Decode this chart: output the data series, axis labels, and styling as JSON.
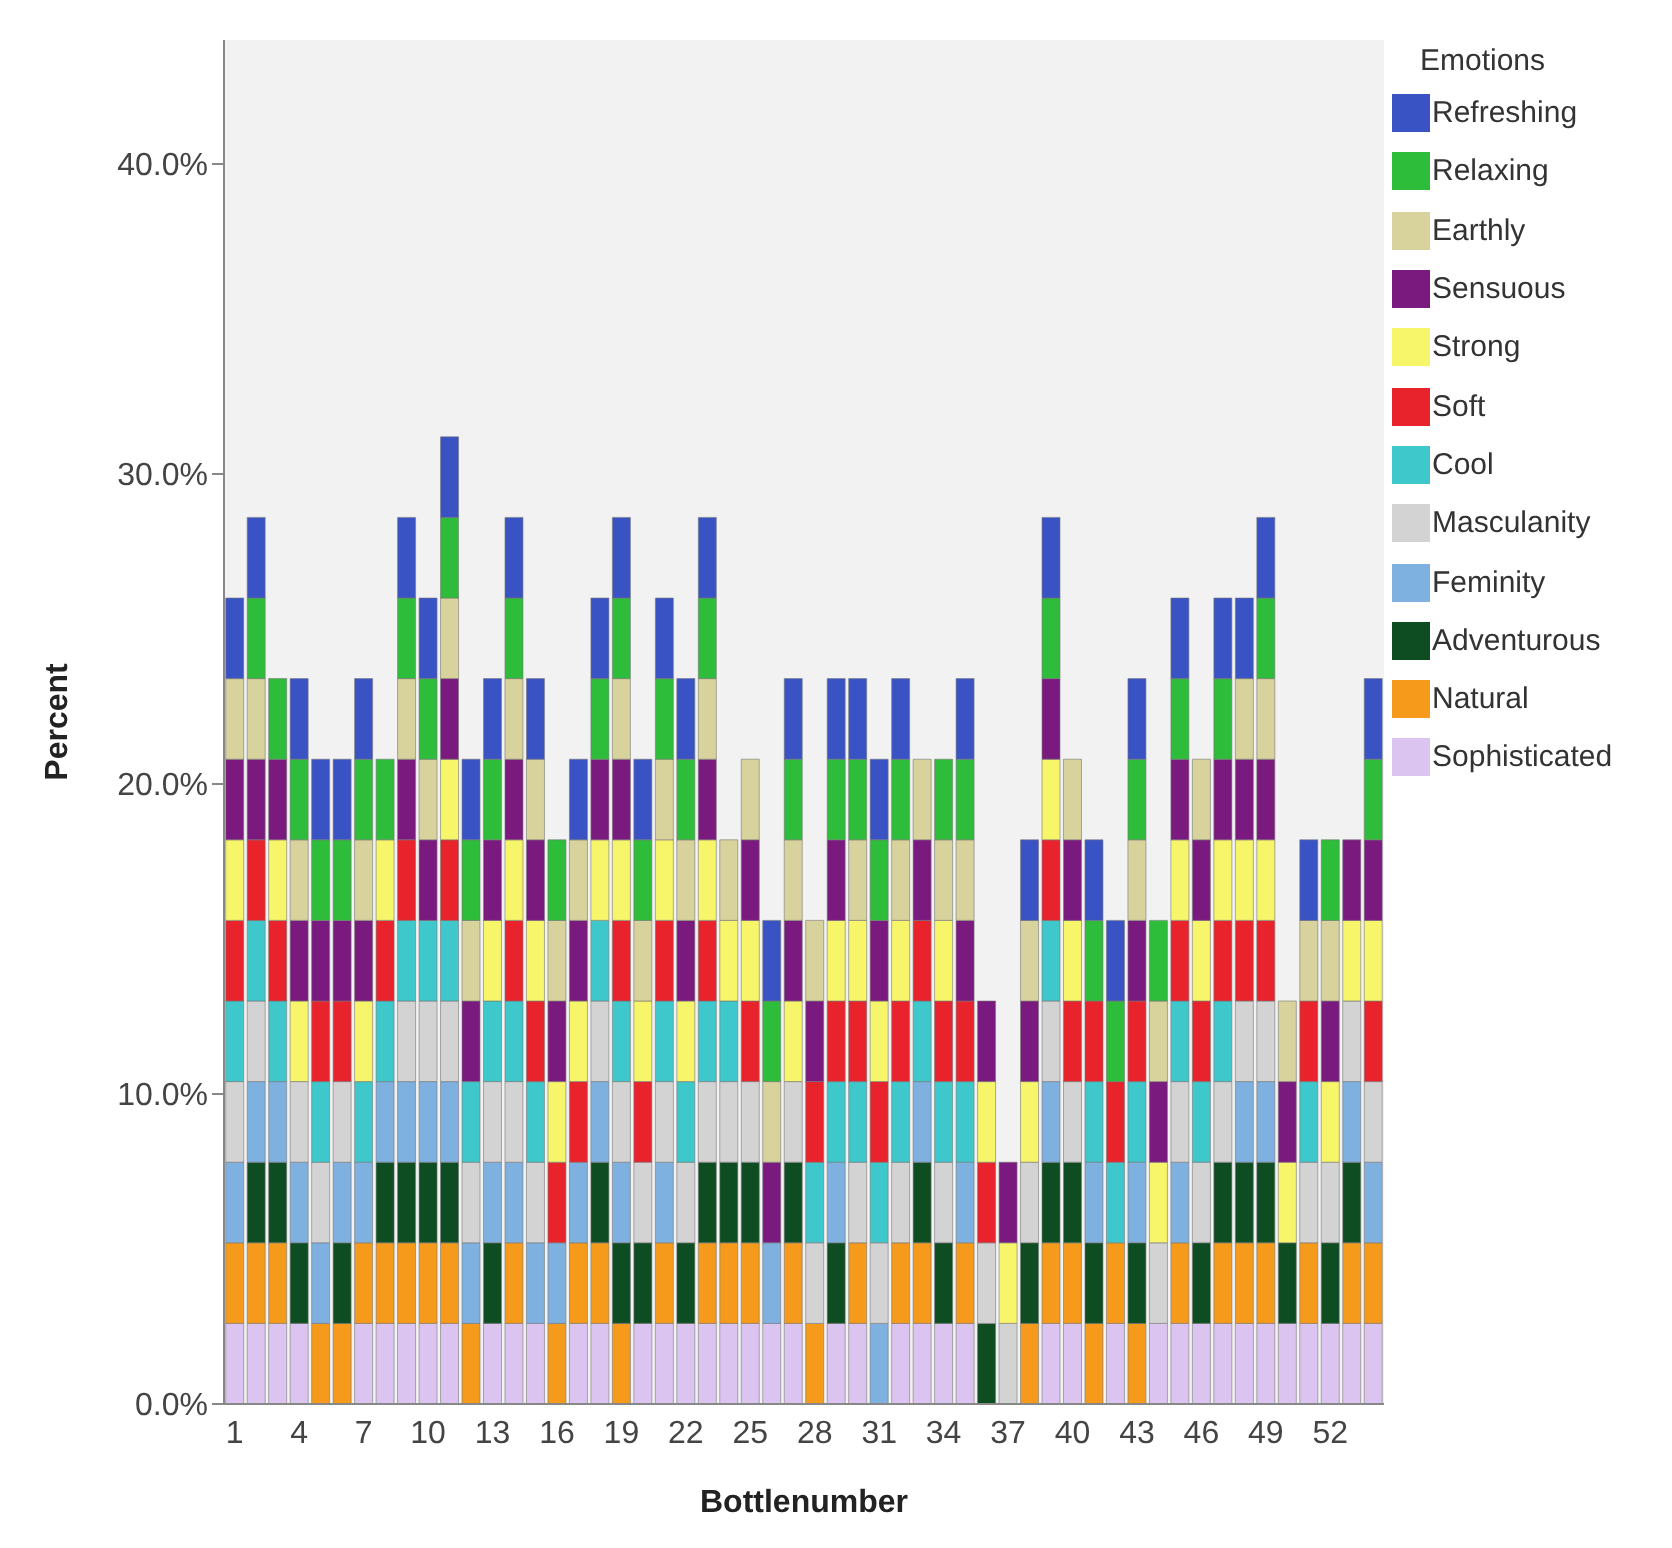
{
  "chart_data": {
    "type": "bar",
    "stacked": true,
    "xlabel": "Bottlenumber",
    "ylabel": "Percent",
    "legend_title": "Emotions",
    "legend": "right",
    "grid": false,
    "categories": [
      "1",
      null,
      null,
      "4",
      null,
      null,
      "7",
      null,
      null,
      "10",
      null,
      null,
      "13",
      null,
      null,
      "16",
      null,
      null,
      "19",
      null,
      null,
      "22",
      null,
      null,
      "25",
      null,
      null,
      "28",
      null,
      null,
      "31",
      null,
      null,
      "34",
      null,
      null,
      "37",
      null,
      null,
      "40",
      null,
      null,
      "43",
      null,
      null,
      "46",
      null,
      null,
      "49",
      null,
      null,
      "52",
      null,
      null
    ],
    "ylim": [
      0,
      44
    ],
    "yticks": [
      {
        "value": 0,
        "label": "0.0%"
      },
      {
        "value": 10,
        "label": "10.0%"
      },
      {
        "value": 20,
        "label": "20.0%"
      },
      {
        "value": 30,
        "label": "30.0%"
      },
      {
        "value": 40,
        "label": "40.0%"
      }
    ],
    "series": [
      {
        "name": "Sophisticated",
        "color": "#dcc4f0",
        "values": [
          2.6,
          2.6,
          2.6,
          2.6,
          0,
          0,
          2.6,
          2.6,
          2.6,
          2.6,
          2.6,
          0,
          2.6,
          2.6,
          2.6,
          0,
          2.6,
          2.6,
          0,
          2.6,
          2.6,
          2.6,
          2.6,
          2.6,
          2.6,
          2.6,
          2.6,
          0,
          2.6,
          2.6,
          0,
          2.6,
          2.6,
          2.6,
          2.6,
          0,
          0,
          0,
          2.6,
          2.6,
          0,
          2.6,
          0,
          2.6,
          2.6,
          2.6,
          2.6,
          2.6,
          2.6,
          2.6,
          2.6,
          2.6,
          2.6,
          2.6
        ]
      },
      {
        "name": "Natural",
        "color": "#f59a1a",
        "values": [
          2.6,
          2.6,
          2.6,
          0,
          2.6,
          2.6,
          2.6,
          2.6,
          2.6,
          2.6,
          2.6,
          2.6,
          0,
          2.6,
          0,
          2.6,
          2.6,
          2.6,
          2.6,
          0,
          2.6,
          0,
          2.6,
          2.6,
          2.6,
          0,
          2.6,
          2.6,
          0,
          2.6,
          0,
          2.6,
          2.6,
          0,
          2.6,
          0,
          0,
          2.6,
          2.6,
          2.6,
          2.6,
          2.6,
          2.6,
          0,
          2.6,
          0,
          2.6,
          2.6,
          2.6,
          0,
          2.6,
          0,
          2.6,
          2.6
        ]
      },
      {
        "name": "Adventurous",
        "color": "#0e4d22",
        "values": [
          0,
          2.6,
          2.6,
          2.6,
          0,
          2.6,
          0,
          2.6,
          2.6,
          2.6,
          2.6,
          0,
          2.6,
          0,
          0,
          0,
          0,
          2.6,
          2.6,
          2.6,
          0,
          2.6,
          2.6,
          2.6,
          2.6,
          0,
          2.6,
          0,
          2.6,
          0,
          0,
          0,
          2.6,
          2.6,
          0,
          2.6,
          0,
          2.6,
          2.6,
          2.6,
          2.6,
          0,
          2.6,
          0,
          0,
          2.6,
          2.6,
          2.6,
          2.6,
          2.6,
          0,
          2.6,
          2.6,
          0
        ]
      },
      {
        "name": "Feminity",
        "color": "#7eb0e0",
        "values": [
          2.6,
          2.6,
          2.6,
          2.6,
          2.6,
          2.6,
          2.6,
          2.6,
          2.6,
          2.6,
          2.6,
          2.6,
          2.6,
          2.6,
          2.6,
          2.6,
          2.6,
          2.6,
          2.6,
          0,
          2.6,
          0,
          0,
          0,
          0,
          2.6,
          0,
          0,
          2.6,
          0,
          2.6,
          0,
          2.6,
          0,
          2.6,
          0,
          0,
          0,
          2.6,
          0,
          2.6,
          0,
          2.6,
          0,
          2.6,
          0,
          0,
          2.6,
          2.6,
          0,
          0,
          0,
          2.6,
          2.6
        ]
      },
      {
        "name": "Masculanity",
        "color": "#d3d3d3",
        "values": [
          2.6,
          2.6,
          0,
          2.6,
          2.6,
          2.6,
          0,
          0,
          2.6,
          2.6,
          2.6,
          2.6,
          2.6,
          2.6,
          2.6,
          0,
          0,
          2.6,
          2.6,
          2.6,
          2.6,
          2.6,
          2.6,
          2.6,
          2.6,
          0,
          2.6,
          2.6,
          0,
          2.6,
          2.6,
          2.6,
          0,
          2.6,
          0,
          2.6,
          2.6,
          2.6,
          2.6,
          2.6,
          0,
          0,
          0,
          2.6,
          2.6,
          2.6,
          2.6,
          2.6,
          2.6,
          0,
          2.6,
          2.6,
          2.6,
          2.6
        ]
      },
      {
        "name": "Cool",
        "color": "#3ec8cc",
        "values": [
          2.6,
          2.6,
          2.6,
          0,
          2.6,
          0,
          2.6,
          2.6,
          2.6,
          2.6,
          2.6,
          2.6,
          2.6,
          2.6,
          2.6,
          0,
          0,
          2.6,
          2.6,
          0,
          2.6,
          2.6,
          2.6,
          2.6,
          0,
          0,
          0,
          2.6,
          2.6,
          2.6,
          2.6,
          2.6,
          2.6,
          2.6,
          2.6,
          0,
          0,
          0,
          2.6,
          0,
          2.6,
          2.6,
          2.6,
          0,
          2.6,
          2.6,
          2.6,
          0,
          0,
          0,
          2.6,
          0,
          0,
          0
        ]
      },
      {
        "name": "Soft",
        "color": "#e8232b",
        "values": [
          2.6,
          2.6,
          2.6,
          0,
          2.6,
          2.6,
          0,
          2.6,
          2.6,
          0,
          2.6,
          0,
          0,
          2.6,
          2.6,
          2.6,
          2.6,
          0,
          2.6,
          2.6,
          2.6,
          0,
          2.6,
          0,
          2.6,
          0,
          0,
          2.6,
          2.6,
          2.6,
          2.6,
          2.6,
          2.6,
          2.6,
          2.6,
          2.6,
          0,
          0,
          2.6,
          2.6,
          2.6,
          2.6,
          2.6,
          0,
          2.6,
          2.6,
          2.6,
          2.6,
          2.6,
          0,
          2.6,
          0,
          0,
          2.6
        ]
      },
      {
        "name": "Strong",
        "color": "#f7f56a",
        "values": [
          2.6,
          0,
          2.6,
          2.6,
          0,
          0,
          2.6,
          2.6,
          0,
          0,
          2.6,
          0,
          2.6,
          2.6,
          2.6,
          2.6,
          2.6,
          2.6,
          2.6,
          2.6,
          2.6,
          2.6,
          2.6,
          2.6,
          2.6,
          0,
          2.6,
          0,
          2.6,
          2.6,
          2.6,
          2.6,
          0,
          2.6,
          0,
          2.6,
          2.6,
          2.6,
          2.6,
          2.6,
          0,
          0,
          0,
          2.6,
          2.6,
          2.6,
          2.6,
          2.6,
          2.6,
          2.6,
          0,
          2.6,
          2.6,
          2.6
        ]
      },
      {
        "name": "Sensuous",
        "color": "#7b1a7e",
        "values": [
          2.6,
          2.6,
          2.6,
          2.6,
          2.6,
          2.6,
          2.6,
          0,
          2.6,
          2.6,
          2.6,
          2.6,
          2.6,
          2.6,
          2.6,
          2.6,
          2.6,
          2.6,
          2.6,
          0,
          0,
          2.6,
          2.6,
          0,
          2.6,
          2.6,
          2.6,
          2.6,
          2.6,
          0,
          2.6,
          0,
          2.6,
          0,
          2.6,
          2.6,
          2.6,
          2.6,
          2.6,
          2.6,
          0,
          0,
          2.6,
          2.6,
          2.6,
          2.6,
          2.6,
          2.6,
          2.6,
          2.6,
          0,
          2.6,
          2.6,
          2.6
        ]
      },
      {
        "name": "Earthly",
        "color": "#d8d29c",
        "values": [
          2.6,
          2.6,
          0,
          2.6,
          0,
          0,
          2.6,
          0,
          2.6,
          2.6,
          2.6,
          2.6,
          0,
          2.6,
          2.6,
          2.6,
          2.6,
          0,
          2.6,
          2.6,
          2.6,
          2.6,
          2.6,
          2.6,
          2.6,
          2.6,
          2.6,
          2.6,
          0,
          2.6,
          0,
          2.6,
          2.6,
          2.6,
          2.6,
          0,
          0,
          2.6,
          0,
          2.6,
          0,
          0,
          2.6,
          2.6,
          0,
          2.6,
          0,
          2.6,
          2.6,
          2.6,
          2.6,
          2.6,
          0,
          0
        ]
      },
      {
        "name": "Relaxing",
        "color": "#2ebd3a",
        "values": [
          0,
          2.6,
          2.6,
          2.6,
          2.6,
          2.6,
          2.6,
          2.6,
          2.6,
          2.6,
          2.6,
          2.6,
          2.6,
          2.6,
          0,
          2.6,
          0,
          2.6,
          2.6,
          2.6,
          2.6,
          2.6,
          2.6,
          0,
          0,
          2.6,
          2.6,
          0,
          2.6,
          2.6,
          2.6,
          2.6,
          0,
          2.6,
          2.6,
          0,
          0,
          0,
          2.6,
          0,
          2.6,
          2.6,
          2.6,
          2.6,
          2.6,
          0,
          2.6,
          0,
          2.6,
          0,
          0,
          2.6,
          0,
          2.6
        ]
      },
      {
        "name": "Refreshing",
        "color": "#3a53c4",
        "values": [
          2.6,
          2.6,
          0,
          2.6,
          2.6,
          2.6,
          2.6,
          0,
          2.6,
          2.6,
          2.6,
          2.6,
          2.6,
          2.6,
          2.6,
          0,
          2.6,
          2.6,
          2.6,
          2.6,
          2.6,
          2.6,
          2.6,
          0,
          0,
          2.6,
          2.6,
          0,
          2.6,
          2.6,
          2.6,
          2.6,
          0,
          0,
          2.6,
          0,
          0,
          2.6,
          2.6,
          0,
          2.6,
          2.6,
          2.6,
          0,
          2.6,
          0,
          2.6,
          2.6,
          2.6,
          0,
          2.6,
          0,
          0,
          2.6
        ]
      }
    ]
  }
}
